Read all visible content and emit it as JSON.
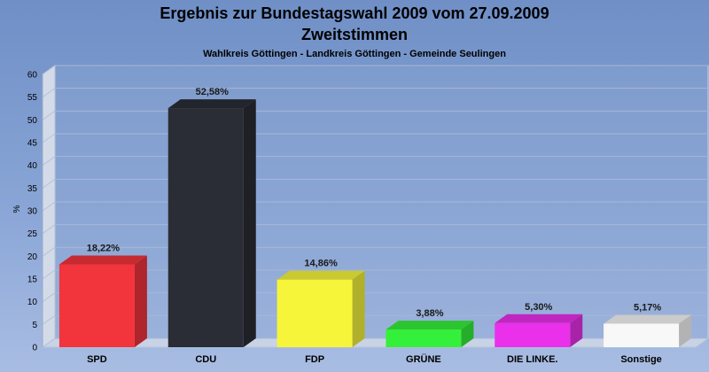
{
  "chart_data": {
    "type": "bar",
    "title": "Ergebnis zur Bundestagswahl 2009 vom 27.09.2009",
    "title2": "Zweitstimmen",
    "subtitle": "Wahlkreis Göttingen - Landkreis Göttingen - Gemeinde Seulingen",
    "ylabel": "%",
    "ylim": [
      0,
      60
    ],
    "yticks": [
      0,
      5,
      10,
      15,
      20,
      25,
      30,
      35,
      40,
      45,
      50,
      55,
      60
    ],
    "grid": true,
    "categories": [
      "SPD",
      "CDU",
      "FDP",
      "GRÜNE",
      "DIE LINKE.",
      "Sonstige"
    ],
    "values": [
      18.22,
      52.58,
      14.86,
      3.88,
      5.3,
      5.17
    ],
    "value_labels": [
      "18,22%",
      "52,58%",
      "14,86%",
      "3,88%",
      "5,30%",
      "5,17%"
    ],
    "colors": [
      "#f2343c",
      "#2a2d35",
      "#f6f53a",
      "#35f03a",
      "#ea30ea",
      "#f8f8f8"
    ]
  }
}
